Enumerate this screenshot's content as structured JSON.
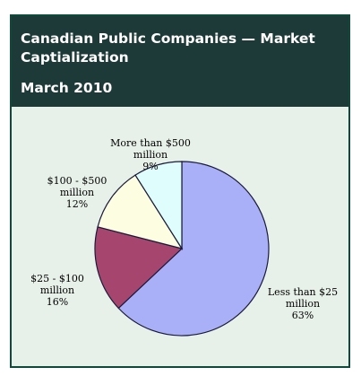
{
  "header": {
    "title": "Canadian Public Companies — Market Captialization",
    "subtitle": "March 2010"
  },
  "chart_data": {
    "type": "pie",
    "title": "Canadian Public Companies — Market Captialization",
    "subtitle": "March 2010",
    "start_angle_deg": 0,
    "direction": "clockwise",
    "slices": [
      {
        "label_lines": [
          "Less than $25",
          "million"
        ],
        "pct_label": "63%",
        "value": 63,
        "color": "#aab0f8"
      },
      {
        "label_lines": [
          "$25 - $100",
          "million"
        ],
        "pct_label": "16%",
        "value": 16,
        "color": "#a6466e"
      },
      {
        "label_lines": [
          "$100 - $500",
          "million"
        ],
        "pct_label": "12%",
        "value": 12,
        "color": "#fdfde2"
      },
      {
        "label_lines": [
          "More than $500",
          "million"
        ],
        "pct_label": "9%",
        "value": 9,
        "color": "#dffdfd"
      }
    ]
  }
}
